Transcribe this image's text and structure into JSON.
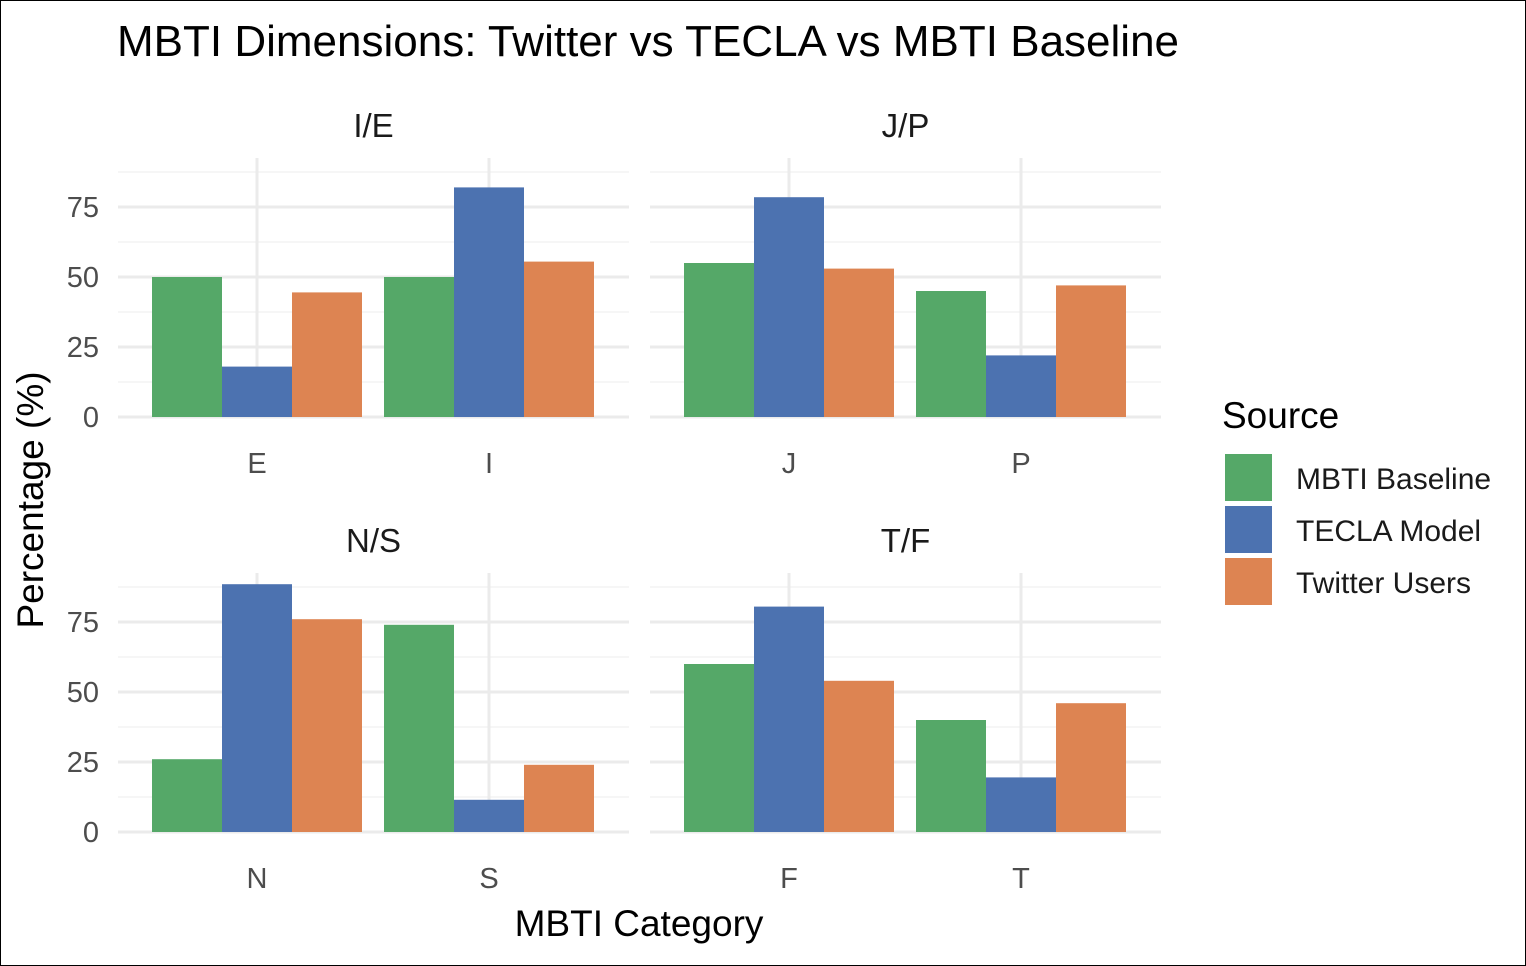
{
  "chart_data": {
    "type": "bar",
    "title": "MBTI Dimensions: Twitter vs TECLA vs MBTI Baseline",
    "xlabel": "MBTI Category",
    "ylabel": "Percentage (%)",
    "ylim": [
      0,
      90
    ],
    "yticks": [
      0,
      25,
      50,
      75
    ],
    "grid": true,
    "legend": {
      "title": "Source",
      "position": "right",
      "entries": [
        {
          "name": "MBTI Baseline",
          "color": "#55a868"
        },
        {
          "name": "TECLA Model",
          "color": "#4c72b0"
        },
        {
          "name": "Twitter Users",
          "color": "#dd8452"
        }
      ]
    },
    "series_names": [
      "MBTI Baseline",
      "TECLA Model",
      "Twitter Users"
    ],
    "facets": [
      {
        "title": "I/E",
        "categories": [
          "E",
          "I"
        ],
        "series": [
          {
            "name": "MBTI Baseline",
            "values": [
              50,
              50
            ]
          },
          {
            "name": "TECLA Model",
            "values": [
              18,
              82
            ]
          },
          {
            "name": "Twitter Users",
            "values": [
              44.5,
              55.5
            ]
          }
        ]
      },
      {
        "title": "J/P",
        "categories": [
          "J",
          "P"
        ],
        "series": [
          {
            "name": "MBTI Baseline",
            "values": [
              55,
              45
            ]
          },
          {
            "name": "TECLA Model",
            "values": [
              78.5,
              22
            ]
          },
          {
            "name": "Twitter Users",
            "values": [
              53,
              47
            ]
          }
        ]
      },
      {
        "title": "N/S",
        "categories": [
          "N",
          "S"
        ],
        "series": [
          {
            "name": "MBTI Baseline",
            "values": [
              26,
              74
            ]
          },
          {
            "name": "TECLA Model",
            "values": [
              88.5,
              11.5
            ]
          },
          {
            "name": "Twitter Users",
            "values": [
              76,
              24
            ]
          }
        ]
      },
      {
        "title": "T/F",
        "categories": [
          "F",
          "T"
        ],
        "series": [
          {
            "name": "MBTI Baseline",
            "values": [
              60,
              40
            ]
          },
          {
            "name": "TECLA Model",
            "values": [
              80.5,
              19.5
            ]
          },
          {
            "name": "Twitter Users",
            "values": [
              54,
              46
            ]
          }
        ]
      }
    ]
  }
}
